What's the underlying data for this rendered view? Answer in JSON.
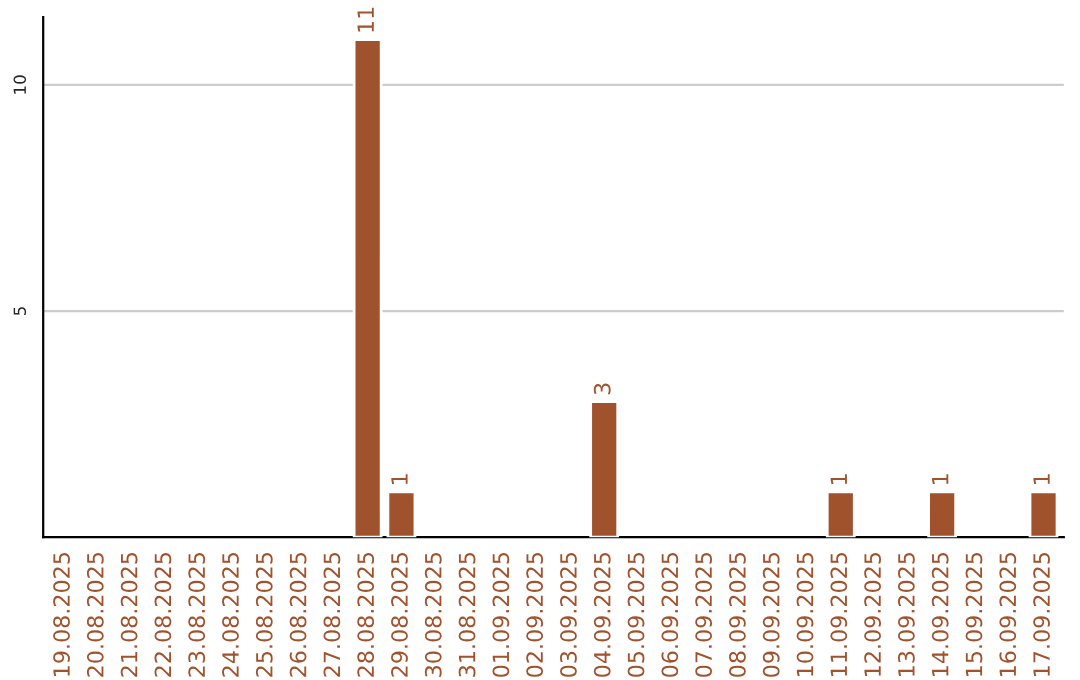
{
  "chart_data": {
    "type": "bar",
    "categories": [
      "19.08.2025",
      "20.08.2025",
      "21.08.2025",
      "22.08.2025",
      "23.08.2025",
      "24.08.2025",
      "25.08.2025",
      "26.08.2025",
      "27.08.2025",
      "28.08.2025",
      "29.08.2025",
      "30.08.2025",
      "31.08.2025",
      "01.09.2025",
      "02.09.2025",
      "03.09.2025",
      "04.09.2025",
      "05.09.2025",
      "06.09.2025",
      "07.09.2025",
      "08.09.2025",
      "09.09.2025",
      "10.09.2025",
      "11.09.2025",
      "12.09.2025",
      "13.09.2025",
      "14.09.2025",
      "15.09.2025",
      "16.09.2025",
      "17.09.2025"
    ],
    "values": [
      null,
      null,
      null,
      null,
      null,
      null,
      null,
      null,
      null,
      11,
      1,
      null,
      null,
      null,
      null,
      null,
      3,
      null,
      null,
      null,
      null,
      null,
      null,
      1,
      null,
      null,
      1,
      null,
      null,
      1
    ],
    "value_labels": [
      null,
      null,
      null,
      null,
      null,
      null,
      null,
      null,
      null,
      "11",
      "1",
      null,
      null,
      null,
      null,
      null,
      "3",
      null,
      null,
      null,
      null,
      null,
      null,
      "1",
      null,
      null,
      "1",
      null,
      null,
      "1"
    ],
    "color": "#a0522d",
    "ylim": [
      0,
      11.5
    ],
    "yticks": [
      5,
      10
    ],
    "grid": "y"
  }
}
